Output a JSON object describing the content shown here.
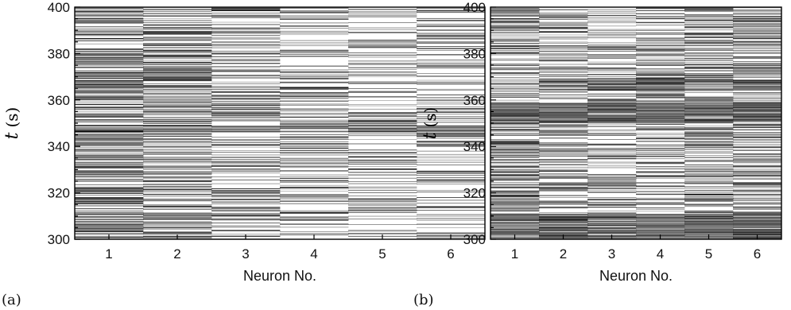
{
  "chart_data": [
    {
      "type": "heatmap",
      "panel_label": "(a)",
      "xlabel": "Neuron No.",
      "ylabel_var": "t",
      "ylabel_unit": "(s)",
      "x_categories": [
        "1",
        "2",
        "3",
        "4",
        "5",
        "6"
      ],
      "ylim": [
        300,
        400
      ],
      "yticks": [
        300,
        320,
        340,
        360,
        380,
        400
      ],
      "y_minor_step": 5,
      "colors": {
        "low": "#ffffff",
        "high": "#000000"
      },
      "dark_bands": [
        {
          "columns": [
            1
          ],
          "t_start": 399,
          "t_end": 400,
          "intensity": 0.95
        },
        {
          "columns": [
            1,
            2
          ],
          "t_start": 369,
          "t_end": 372,
          "intensity": 0.85
        },
        {
          "columns": [
            1,
            2,
            3,
            4,
            5,
            6
          ],
          "t_start": 346,
          "t_end": 349,
          "intensity": 0.8
        },
        {
          "columns": [
            1
          ],
          "t_start": 315,
          "t_end": 318,
          "intensity": 0.85
        }
      ],
      "column_density": [
        0.55,
        0.5,
        0.42,
        0.38,
        0.32,
        0.3
      ]
    },
    {
      "type": "heatmap",
      "panel_label": "(b)",
      "xlabel": "Neuron No.",
      "ylabel_var": "t",
      "ylabel_unit": "(s)",
      "x_categories": [
        "1",
        "2",
        "3",
        "4",
        "5",
        "6"
      ],
      "ylim": [
        300,
        400
      ],
      "yticks": [
        300,
        320,
        340,
        360,
        380,
        400
      ],
      "y_minor_step": 5,
      "colors": {
        "low": "#ffffff",
        "high": "#000000"
      },
      "dark_bands": [
        {
          "columns": [
            1,
            2,
            3,
            4,
            5,
            6
          ],
          "t_start": 350,
          "t_end": 359,
          "intensity": 0.95
        },
        {
          "columns": [
            2,
            3,
            4,
            5,
            6
          ],
          "t_start": 364,
          "t_end": 369,
          "intensity": 0.9
        },
        {
          "columns": [
            1,
            2,
            3,
            4,
            5,
            6
          ],
          "t_start": 300,
          "t_end": 311,
          "intensity": 0.95
        }
      ],
      "column_density": [
        0.5,
        0.45,
        0.4,
        0.45,
        0.5,
        0.48
      ]
    }
  ]
}
